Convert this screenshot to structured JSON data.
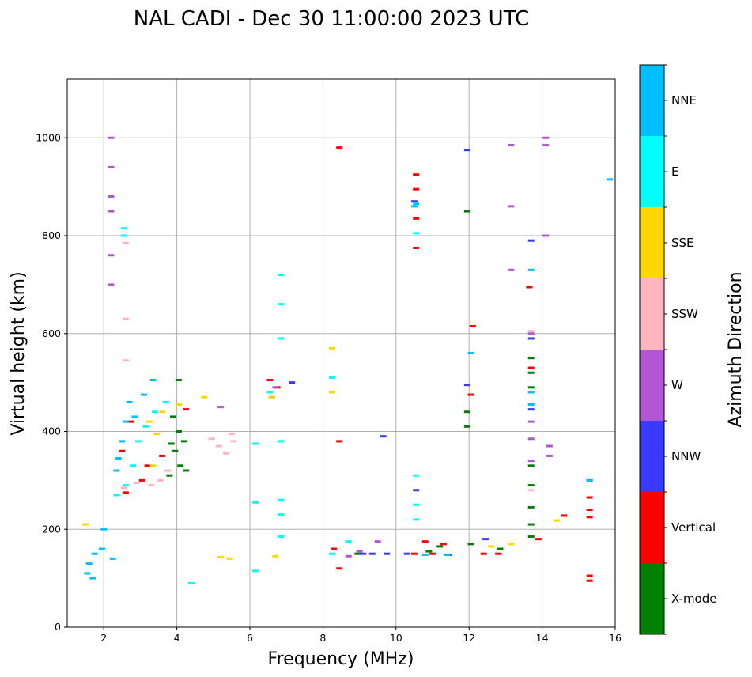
{
  "chart_data": {
    "type": "scatter",
    "title": "NAL CADI - Dec 30 11:00:00 2023 UTC",
    "xlabel": "Frequency (MHz)",
    "ylabel": "Virtual height (km)",
    "xlim": [
      1,
      16
    ],
    "ylim": [
      0,
      1120
    ],
    "xticks": [
      2,
      4,
      6,
      8,
      10,
      12,
      14,
      16
    ],
    "yticks": [
      0,
      200,
      400,
      600,
      800,
      1000
    ],
    "grid": true,
    "colorbar": {
      "label": "Azimuth Direction",
      "position": "right",
      "categories": [
        {
          "name": "X-mode",
          "color": "#008000"
        },
        {
          "name": "Vertical",
          "color": "#ff0000"
        },
        {
          "name": "NNW",
          "color": "#3a3aff"
        },
        {
          "name": "W",
          "color": "#b256d6"
        },
        {
          "name": "SSW",
          "color": "#ffb6c1"
        },
        {
          "name": "SSE",
          "color": "#ffd700"
        },
        {
          "name": "E",
          "color": "#00ffff"
        },
        {
          "name": "NNE",
          "color": "#00bfff"
        }
      ]
    },
    "series": [
      {
        "name": "X-mode",
        "points": [
          [
            3.9,
            430
          ],
          [
            4.05,
            400
          ],
          [
            3.95,
            360
          ],
          [
            4.1,
            330
          ],
          [
            3.8,
            310
          ],
          [
            4.2,
            380
          ],
          [
            4.05,
            505
          ],
          [
            8.95,
            150
          ],
          [
            10.9,
            155
          ],
          [
            11.2,
            165
          ],
          [
            12.85,
            160
          ],
          [
            12.05,
            170
          ],
          [
            11.95,
            410
          ],
          [
            11.95,
            440
          ],
          [
            11.95,
            850
          ],
          [
            13.7,
            490
          ],
          [
            13.7,
            520
          ],
          [
            13.7,
            550
          ],
          [
            13.7,
            330
          ],
          [
            13.7,
            290
          ],
          [
            13.7,
            245
          ],
          [
            13.7,
            210
          ],
          [
            13.7,
            185
          ],
          [
            4.25,
            320
          ],
          [
            3.85,
            375
          ]
        ]
      },
      {
        "name": "Vertical",
        "points": [
          [
            2.6,
            275
          ],
          [
            2.5,
            360
          ],
          [
            3.05,
            300
          ],
          [
            3.2,
            330
          ],
          [
            3.6,
            350
          ],
          [
            2.75,
            420
          ],
          [
            4.25,
            445
          ],
          [
            6.55,
            505
          ],
          [
            6.75,
            490
          ],
          [
            8.45,
            980
          ],
          [
            8.45,
            380
          ],
          [
            8.45,
            120
          ],
          [
            10.55,
            925
          ],
          [
            10.55,
            895
          ],
          [
            10.55,
            835
          ],
          [
            10.55,
            775
          ],
          [
            10.8,
            175
          ],
          [
            10.5,
            150
          ],
          [
            11.0,
            150
          ],
          [
            11.3,
            170
          ],
          [
            12.1,
            615
          ],
          [
            12.05,
            475
          ],
          [
            12.8,
            150
          ],
          [
            12.4,
            150
          ],
          [
            13.65,
            695
          ],
          [
            13.7,
            530
          ],
          [
            14.6,
            228
          ],
          [
            13.9,
            180
          ],
          [
            15.3,
            225
          ],
          [
            15.3,
            240
          ],
          [
            15.3,
            265
          ],
          [
            15.3,
            300
          ],
          [
            15.3,
            105
          ],
          [
            15.3,
            95
          ],
          [
            8.3,
            160
          ]
        ]
      },
      {
        "name": "NNW",
        "points": [
          [
            7.15,
            500
          ],
          [
            9.1,
            150
          ],
          [
            9.35,
            150
          ],
          [
            9.75,
            150
          ],
          [
            10.3,
            150
          ],
          [
            10.55,
            280
          ],
          [
            10.5,
            870
          ],
          [
            11.95,
            975
          ],
          [
            11.95,
            495
          ],
          [
            12.45,
            180
          ],
          [
            13.7,
            790
          ],
          [
            13.7,
            445
          ],
          [
            13.7,
            590
          ],
          [
            9.65,
            390
          ],
          [
            11.45,
            148
          ]
        ]
      },
      {
        "name": "W",
        "points": [
          [
            5.2,
            450
          ],
          [
            6.7,
            490
          ],
          [
            6.6,
            470
          ],
          [
            8.7,
            145
          ],
          [
            9.0,
            155
          ],
          [
            9.5,
            175
          ],
          [
            13.15,
            985
          ],
          [
            14.1,
            1000
          ],
          [
            14.1,
            985
          ],
          [
            13.15,
            860
          ],
          [
            14.1,
            800
          ],
          [
            13.15,
            730
          ],
          [
            13.7,
            600
          ],
          [
            13.7,
            420
          ],
          [
            13.7,
            385
          ],
          [
            13.7,
            340
          ],
          [
            14.2,
            370
          ],
          [
            14.2,
            350
          ],
          [
            2.2,
            1000
          ],
          [
            2.2,
            940
          ],
          [
            2.2,
            850
          ],
          [
            2.2,
            760
          ],
          [
            2.2,
            700
          ],
          [
            2.2,
            880
          ]
        ]
      },
      {
        "name": "SSW",
        "points": [
          [
            2.55,
            285
          ],
          [
            2.9,
            295
          ],
          [
            3.3,
            290
          ],
          [
            3.55,
            300
          ],
          [
            3.75,
            320
          ],
          [
            4.95,
            385
          ],
          [
            5.15,
            370
          ],
          [
            5.35,
            355
          ],
          [
            5.55,
            380
          ],
          [
            5.5,
            395
          ],
          [
            2.6,
            630
          ],
          [
            2.6,
            545
          ],
          [
            2.6,
            785
          ],
          [
            13.7,
            280
          ],
          [
            13.7,
            605
          ]
        ]
      },
      {
        "name": "SSE",
        "points": [
          [
            3.25,
            420
          ],
          [
            3.45,
            395
          ],
          [
            3.6,
            440
          ],
          [
            4.05,
            455
          ],
          [
            3.35,
            330
          ],
          [
            4.75,
            470
          ],
          [
            6.6,
            470
          ],
          [
            6.7,
            145
          ],
          [
            8.25,
            570
          ],
          [
            8.25,
            480
          ],
          [
            5.2,
            143
          ],
          [
            5.45,
            140
          ],
          [
            14.4,
            218
          ],
          [
            13.15,
            170
          ],
          [
            12.6,
            165
          ],
          [
            1.5,
            210
          ]
        ]
      },
      {
        "name": "E",
        "points": [
          [
            2.35,
            270
          ],
          [
            2.6,
            290
          ],
          [
            2.8,
            330
          ],
          [
            2.95,
            380
          ],
          [
            3.15,
            410
          ],
          [
            3.4,
            440
          ],
          [
            3.7,
            460
          ],
          [
            2.55,
            800
          ],
          [
            2.55,
            815
          ],
          [
            6.85,
            720
          ],
          [
            6.85,
            660
          ],
          [
            6.85,
            590
          ],
          [
            6.85,
            380
          ],
          [
            6.85,
            260
          ],
          [
            6.85,
            230
          ],
          [
            6.85,
            185
          ],
          [
            6.15,
            255
          ],
          [
            6.15,
            375
          ],
          [
            6.15,
            115
          ],
          [
            4.4,
            90
          ],
          [
            8.7,
            175
          ],
          [
            8.25,
            150
          ],
          [
            10.55,
            805
          ],
          [
            10.55,
            250
          ],
          [
            10.55,
            220
          ],
          [
            10.55,
            310
          ],
          [
            8.25,
            510
          ],
          [
            6.55,
            480
          ]
        ]
      },
      {
        "name": "NNE",
        "points": [
          [
            1.55,
            110
          ],
          [
            1.6,
            130
          ],
          [
            1.75,
            150
          ],
          [
            1.95,
            160
          ],
          [
            2.0,
            200
          ],
          [
            2.35,
            320
          ],
          [
            2.4,
            345
          ],
          [
            2.5,
            380
          ],
          [
            2.6,
            420
          ],
          [
            2.7,
            460
          ],
          [
            2.85,
            430
          ],
          [
            3.1,
            475
          ],
          [
            3.35,
            505
          ],
          [
            2.25,
            140
          ],
          [
            10.5,
            860
          ],
          [
            10.55,
            865
          ],
          [
            12.05,
            560
          ],
          [
            13.7,
            730
          ],
          [
            13.7,
            480
          ],
          [
            13.7,
            455
          ],
          [
            10.8,
            148
          ],
          [
            11.4,
            148
          ],
          [
            15.3,
            300
          ],
          [
            15.85,
            915
          ],
          [
            1.7,
            100
          ]
        ]
      }
    ]
  }
}
